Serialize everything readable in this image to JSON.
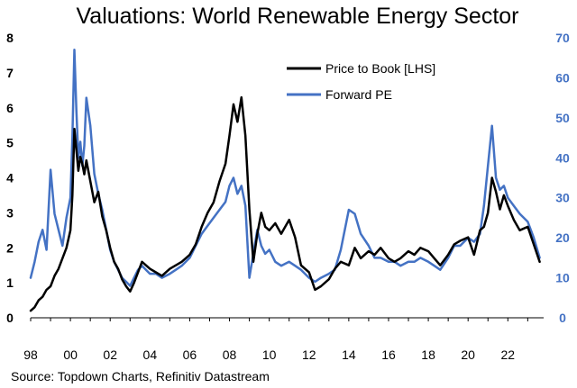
{
  "chart_data": {
    "type": "line",
    "title": "Valuations: World Renewable Energy Sector",
    "source": "Source: Topdown Charts, Refinitiv Datastream",
    "x_ticks": [
      "98",
      "00",
      "02",
      "04",
      "06",
      "08",
      "10",
      "12",
      "14",
      "16",
      "18",
      "20",
      "22"
    ],
    "x_tick_years": [
      1998,
      2000,
      2002,
      2004,
      2006,
      2008,
      2010,
      2012,
      2014,
      2016,
      2018,
      2020,
      2022
    ],
    "xlim": [
      1998.0,
      2023.8
    ],
    "left_axis": {
      "ticks": [
        "0",
        "1",
        "2",
        "3",
        "4",
        "5",
        "6",
        "7",
        "8"
      ],
      "ylim": [
        0,
        8
      ]
    },
    "right_axis": {
      "ticks": [
        "0",
        "10",
        "20",
        "30",
        "40",
        "50",
        "60",
        "70"
      ],
      "ylim": [
        0,
        70
      ]
    },
    "colors": {
      "price_to_book": "#000000",
      "forward_pe": "#4472C4"
    },
    "series": [
      {
        "name": "Price to Book [LHS]",
        "axis": "left",
        "x": [
          1998.0,
          1998.2,
          1998.4,
          1998.6,
          1998.8,
          1999.0,
          1999.2,
          1999.4,
          1999.6,
          1999.8,
          2000.0,
          2000.1,
          2000.2,
          2000.3,
          2000.4,
          2000.5,
          2000.6,
          2000.7,
          2000.8,
          2001.0,
          2001.2,
          2001.4,
          2001.6,
          2001.8,
          2002.0,
          2002.2,
          2002.4,
          2002.6,
          2002.8,
          2003.0,
          2003.2,
          2003.4,
          2003.6,
          2003.8,
          2004.0,
          2004.3,
          2004.6,
          2005.0,
          2005.3,
          2005.6,
          2006.0,
          2006.3,
          2006.6,
          2006.9,
          2007.2,
          2007.5,
          2007.8,
          2008.0,
          2008.2,
          2008.4,
          2008.6,
          2008.8,
          2009.0,
          2009.2,
          2009.4,
          2009.6,
          2009.8,
          2010.0,
          2010.3,
          2010.6,
          2011.0,
          2011.3,
          2011.6,
          2012.0,
          2012.3,
          2012.6,
          2013.0,
          2013.3,
          2013.6,
          2014.0,
          2014.3,
          2014.6,
          2015.0,
          2015.3,
          2015.6,
          2016.0,
          2016.3,
          2016.6,
          2017.0,
          2017.3,
          2017.6,
          2018.0,
          2018.3,
          2018.6,
          2019.0,
          2019.3,
          2019.6,
          2020.0,
          2020.3,
          2020.6,
          2020.8,
          2021.0,
          2021.2,
          2021.4,
          2021.6,
          2021.8,
          2022.0,
          2022.3,
          2022.6,
          2023.0,
          2023.3,
          2023.6
        ],
        "values": [
          0.2,
          0.3,
          0.5,
          0.6,
          0.8,
          0.9,
          1.2,
          1.4,
          1.7,
          2.0,
          2.5,
          3.5,
          5.4,
          4.8,
          4.2,
          4.6,
          4.4,
          4.1,
          4.5,
          3.9,
          3.3,
          3.6,
          2.9,
          2.5,
          2.0,
          1.6,
          1.4,
          1.1,
          0.9,
          0.75,
          1.0,
          1.3,
          1.6,
          1.5,
          1.4,
          1.3,
          1.2,
          1.4,
          1.5,
          1.6,
          1.8,
          2.1,
          2.6,
          3.0,
          3.3,
          3.9,
          4.4,
          5.2,
          6.1,
          5.6,
          6.3,
          5.2,
          3.1,
          1.6,
          2.4,
          3.0,
          2.6,
          2.5,
          2.7,
          2.4,
          2.8,
          2.3,
          1.5,
          1.3,
          0.8,
          0.9,
          1.1,
          1.4,
          1.6,
          1.5,
          2.0,
          1.7,
          1.9,
          1.8,
          2.0,
          1.7,
          1.6,
          1.7,
          1.9,
          1.8,
          2.0,
          1.9,
          1.7,
          1.5,
          1.8,
          2.1,
          2.2,
          2.3,
          1.8,
          2.5,
          2.6,
          3.0,
          4.0,
          3.6,
          3.1,
          3.5,
          3.2,
          2.8,
          2.5,
          2.6,
          2.1,
          1.6
        ]
      },
      {
        "name": "Forward PE",
        "axis": "right",
        "x": [
          1998.0,
          1998.2,
          1998.4,
          1998.6,
          1998.8,
          1999.0,
          1999.2,
          1999.4,
          1999.6,
          1999.8,
          2000.0,
          2000.1,
          2000.2,
          2000.3,
          2000.4,
          2000.5,
          2000.6,
          2000.7,
          2000.8,
          2001.0,
          2001.2,
          2001.4,
          2001.6,
          2001.8,
          2002.0,
          2002.2,
          2002.4,
          2002.6,
          2002.8,
          2003.0,
          2003.2,
          2003.4,
          2003.6,
          2003.8,
          2004.0,
          2004.3,
          2004.6,
          2005.0,
          2005.3,
          2005.6,
          2006.0,
          2006.3,
          2006.6,
          2006.9,
          2007.2,
          2007.5,
          2007.8,
          2008.0,
          2008.2,
          2008.4,
          2008.6,
          2008.8,
          2009.0,
          2009.2,
          2009.4,
          2009.6,
          2009.8,
          2010.0,
          2010.3,
          2010.6,
          2011.0,
          2011.3,
          2011.6,
          2012.0,
          2012.3,
          2012.6,
          2013.0,
          2013.3,
          2013.6,
          2014.0,
          2014.3,
          2014.6,
          2015.0,
          2015.3,
          2015.6,
          2016.0,
          2016.3,
          2016.6,
          2017.0,
          2017.3,
          2017.6,
          2018.0,
          2018.3,
          2018.6,
          2019.0,
          2019.3,
          2019.6,
          2020.0,
          2020.3,
          2020.6,
          2020.8,
          2021.0,
          2021.2,
          2021.4,
          2021.6,
          2021.8,
          2022.0,
          2022.3,
          2022.6,
          2023.0,
          2023.3,
          2023.6
        ],
        "values": [
          10,
          14,
          19,
          22,
          17,
          37,
          26,
          22,
          18,
          25,
          30,
          45,
          67,
          52,
          40,
          44,
          38,
          43,
          55,
          48,
          36,
          31,
          27,
          22,
          17,
          14,
          12,
          10,
          9,
          8,
          10,
          12,
          13,
          12,
          11,
          11,
          10,
          11,
          12,
          13,
          15,
          18,
          21,
          23,
          25,
          27,
          29,
          33,
          35,
          31,
          33,
          28,
          10,
          16,
          22,
          18,
          16,
          17,
          14,
          13,
          14,
          13,
          12,
          10,
          9,
          10,
          11,
          12,
          17,
          27,
          26,
          21,
          18,
          15,
          15,
          14,
          14,
          13,
          14,
          14,
          15,
          14,
          13,
          12,
          15,
          18,
          18,
          20,
          19,
          21,
          28,
          38,
          48,
          35,
          32,
          33,
          30,
          28,
          26,
          24,
          20,
          15
        ]
      }
    ],
    "legend": [
      {
        "label": "Price to Book [LHS]",
        "color": "#000000"
      },
      {
        "label": "Forward PE",
        "color": "#4472C4"
      }
    ],
    "legend_position": "top-right"
  }
}
